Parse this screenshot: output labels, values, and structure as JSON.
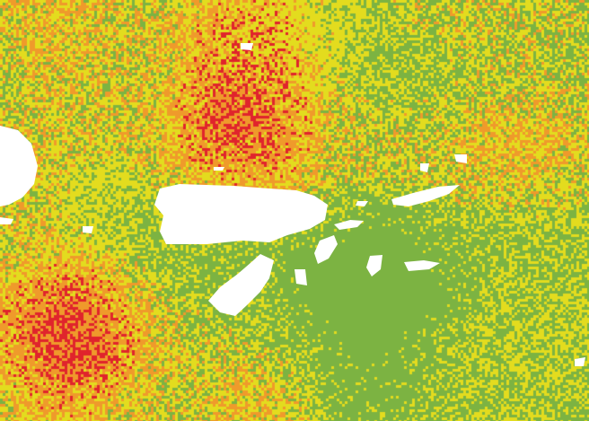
{
  "map": {
    "type": "classified-raster",
    "classes": [
      {
        "color": "#7cb342"
      },
      {
        "color": "#e3dc1e"
      },
      {
        "color": "#ef9a2b"
      },
      {
        "color": "#e0242c"
      }
    ],
    "nodata_color": "#ffffff"
  }
}
